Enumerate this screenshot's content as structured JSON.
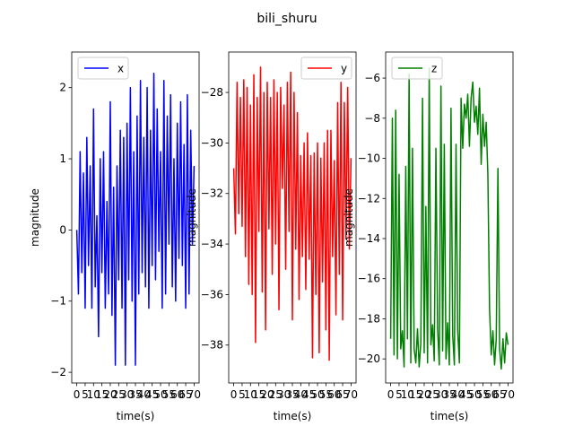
{
  "figure": {
    "title": "bili_shuru"
  },
  "chart_data": [
    {
      "type": "line",
      "title": "",
      "xlabel": "time(s)",
      "ylabel": "magnitude",
      "xlim": [
        -3,
        73
      ],
      "ylim": [
        -2.15,
        2.5
      ],
      "yticks": [
        -2,
        -1,
        0,
        1,
        2
      ],
      "xticks": [
        0,
        5,
        10,
        15,
        20,
        25,
        30,
        35,
        40,
        45,
        50,
        55,
        60,
        65,
        70
      ],
      "legend_position": "upper-left",
      "series": [
        {
          "name": "x",
          "color": "#0000ff",
          "x": [
            0,
            1,
            2,
            3,
            4,
            5,
            6,
            7,
            8,
            9,
            10,
            11,
            12,
            13,
            14,
            15,
            16,
            17,
            18,
            19,
            20,
            21,
            22,
            23,
            24,
            25,
            26,
            27,
            28,
            29,
            30,
            31,
            32,
            33,
            34,
            35,
            36,
            37,
            38,
            39,
            40,
            41,
            42,
            43,
            44,
            45,
            46,
            47,
            48,
            49,
            50,
            51,
            52,
            53,
            54,
            55,
            56,
            57,
            58,
            59,
            60,
            61,
            62,
            63,
            64,
            65,
            66,
            67,
            68,
            69,
            70
          ],
          "y": [
            0.0,
            -0.9,
            1.1,
            -0.6,
            0.8,
            -1.1,
            1.3,
            -0.5,
            0.9,
            -1.1,
            1.7,
            -0.8,
            0.2,
            -1.5,
            1.0,
            -0.6,
            1.1,
            -1.1,
            0.4,
            -0.9,
            1.8,
            -1.2,
            0.6,
            -1.9,
            0.9,
            -0.7,
            1.4,
            -1.1,
            1.3,
            -1.9,
            1.5,
            -0.7,
            2.0,
            -1.0,
            1.1,
            -1.9,
            1.6,
            -0.9,
            2.1,
            -0.6,
            1.3,
            -0.8,
            2.0,
            -1.1,
            1.4,
            -0.5,
            2.2,
            -0.7,
            1.7,
            -0.3,
            1.1,
            -1.1,
            2.1,
            -0.9,
            1.6,
            -0.2,
            1.9,
            -0.8,
            1.0,
            -1.0,
            1.5,
            -0.4,
            1.8,
            -0.5,
            1.2,
            -1.1,
            1.9,
            -0.9,
            1.4,
            -0.2,
            0.9
          ]
        }
      ]
    },
    {
      "type": "line",
      "title": "",
      "xlabel": "time(s)",
      "ylabel": "magnitude",
      "xlim": [
        -3,
        73
      ],
      "ylim": [
        -39.5,
        -26.4
      ],
      "yticks": [
        -38,
        -36,
        -34,
        -32,
        -30,
        -28
      ],
      "xticks": [
        0,
        5,
        10,
        15,
        20,
        25,
        30,
        35,
        40,
        45,
        50,
        55,
        60,
        65,
        70
      ],
      "legend_position": "upper-right",
      "series": [
        {
          "name": "y",
          "color": "#ff0000",
          "x": [
            0,
            1,
            2,
            3,
            4,
            5,
            6,
            7,
            8,
            9,
            10,
            11,
            12,
            13,
            14,
            15,
            16,
            17,
            18,
            19,
            20,
            21,
            22,
            23,
            24,
            25,
            26,
            27,
            28,
            29,
            30,
            31,
            32,
            33,
            34,
            35,
            36,
            37,
            38,
            39,
            40,
            41,
            42,
            43,
            44,
            45,
            46,
            47,
            48,
            49,
            50,
            51,
            52,
            53,
            54,
            55,
            56,
            57,
            58,
            59,
            60,
            61,
            62,
            63,
            64,
            65,
            66,
            67,
            68,
            69,
            70
          ],
          "y": [
            -31.0,
            -33.6,
            -27.6,
            -32.8,
            -28.2,
            -33.3,
            -27.5,
            -34.5,
            -27.8,
            -35.6,
            -28.5,
            -36.0,
            -27.3,
            -37.9,
            -28.2,
            -33.5,
            -27.0,
            -35.9,
            -28.0,
            -37.4,
            -27.6,
            -33.4,
            -28.2,
            -35.2,
            -27.5,
            -34.0,
            -28.0,
            -36.6,
            -27.8,
            -31.8,
            -28.5,
            -35.0,
            -27.6,
            -33.5,
            -27.2,
            -37.0,
            -28.0,
            -34.2,
            -28.8,
            -36.2,
            -30.5,
            -34.5,
            -30.0,
            -35.8,
            -29.6,
            -34.6,
            -30.5,
            -38.5,
            -30.4,
            -36.0,
            -30.0,
            -38.3,
            -30.6,
            -35.5,
            -30.0,
            -37.4,
            -29.5,
            -38.6,
            -29.5,
            -34.5,
            -30.7,
            -36.8,
            -28.4,
            -35.2,
            -27.6,
            -37.0,
            -28.4,
            -33.8,
            -27.8,
            -34.2,
            -30.6
          ]
        }
      ]
    },
    {
      "type": "line",
      "title": "",
      "xlabel": "time(s)",
      "ylabel": "magnitude",
      "xlim": [
        -3,
        73
      ],
      "ylim": [
        -21.2,
        -4.7
      ],
      "yticks": [
        -20,
        -18,
        -16,
        -14,
        -12,
        -10,
        -8,
        -6
      ],
      "xticks": [
        0,
        5,
        10,
        15,
        20,
        25,
        30,
        35,
        40,
        45,
        50,
        55,
        60,
        65,
        70
      ],
      "legend_position": "upper-left",
      "series": [
        {
          "name": "z",
          "color": "#008000",
          "x": [
            0,
            1,
            2,
            3,
            4,
            5,
            6,
            7,
            8,
            9,
            10,
            11,
            12,
            13,
            14,
            15,
            16,
            17,
            18,
            19,
            20,
            21,
            22,
            23,
            24,
            25,
            26,
            27,
            28,
            29,
            30,
            31,
            32,
            33,
            34,
            35,
            36,
            37,
            38,
            39,
            40,
            41,
            42,
            43,
            44,
            45,
            46,
            47,
            48,
            49,
            50,
            51,
            52,
            53,
            54,
            55,
            56,
            57,
            58,
            59,
            60,
            61,
            62,
            63,
            64,
            65,
            66,
            67,
            68,
            69,
            70
          ],
          "y": [
            -19.0,
            -8.0,
            -19.8,
            -7.6,
            -20.0,
            -10.8,
            -19.5,
            -18.6,
            -20.4,
            -10.4,
            -19.0,
            -5.8,
            -20.2,
            -9.5,
            -19.5,
            -20.2,
            -18.5,
            -20.4,
            -19.2,
            -7.0,
            -19.7,
            -12.4,
            -20.2,
            -5.5,
            -19.3,
            -18.3,
            -20.1,
            -9.5,
            -18.5,
            -20.3,
            -6.4,
            -19.6,
            -9.3,
            -20.0,
            -18.2,
            -20.3,
            -7.5,
            -18.8,
            -20.3,
            -9.3,
            -18.6,
            -20.2,
            -7.0,
            -9.5,
            -7.3,
            -8.0,
            -6.8,
            -9.4,
            -7.0,
            -6.2,
            -8.2,
            -7.4,
            -8.8,
            -6.5,
            -10.3,
            -7.8,
            -9.4,
            -8.2,
            -10.8,
            -17.5,
            -19.8,
            -18.6,
            -20.3,
            -19.0,
            -10.5,
            -19.5,
            -20.5,
            -19.0,
            -20.2,
            -18.7,
            -19.3
          ]
        }
      ]
    }
  ]
}
